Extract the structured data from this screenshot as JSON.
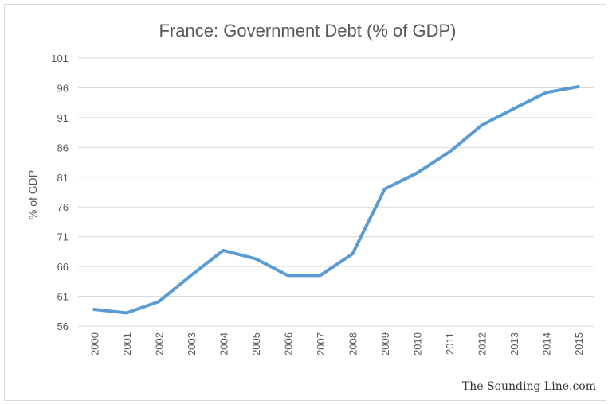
{
  "chart_data": {
    "type": "line",
    "title": "France: Government Debt (% of GDP)",
    "xlabel": "",
    "ylabel": "% of GDP",
    "ylim": [
      56,
      101
    ],
    "yticks": [
      "56",
      "61",
      "66",
      "71",
      "76",
      "81",
      "86",
      "91",
      "96",
      "101"
    ],
    "categories": [
      "2000",
      "2001",
      "2002",
      "2003",
      "2004",
      "2005",
      "2006",
      "2007",
      "2008",
      "2009",
      "2010",
      "2011",
      "2012",
      "2013",
      "2014",
      "2015"
    ],
    "series": [
      {
        "name": "Government Debt (% of GDP)",
        "color": "#5b9bd5",
        "values": [
          58.8,
          58.2,
          60.1,
          64.5,
          68.7,
          67.3,
          64.5,
          64.5,
          68.1,
          79.0,
          81.7,
          85.2,
          89.7,
          92.5,
          95.2,
          96.2
        ]
      }
    ],
    "grid": true,
    "legend": "none",
    "watermark": "The Sounding Line.com"
  }
}
